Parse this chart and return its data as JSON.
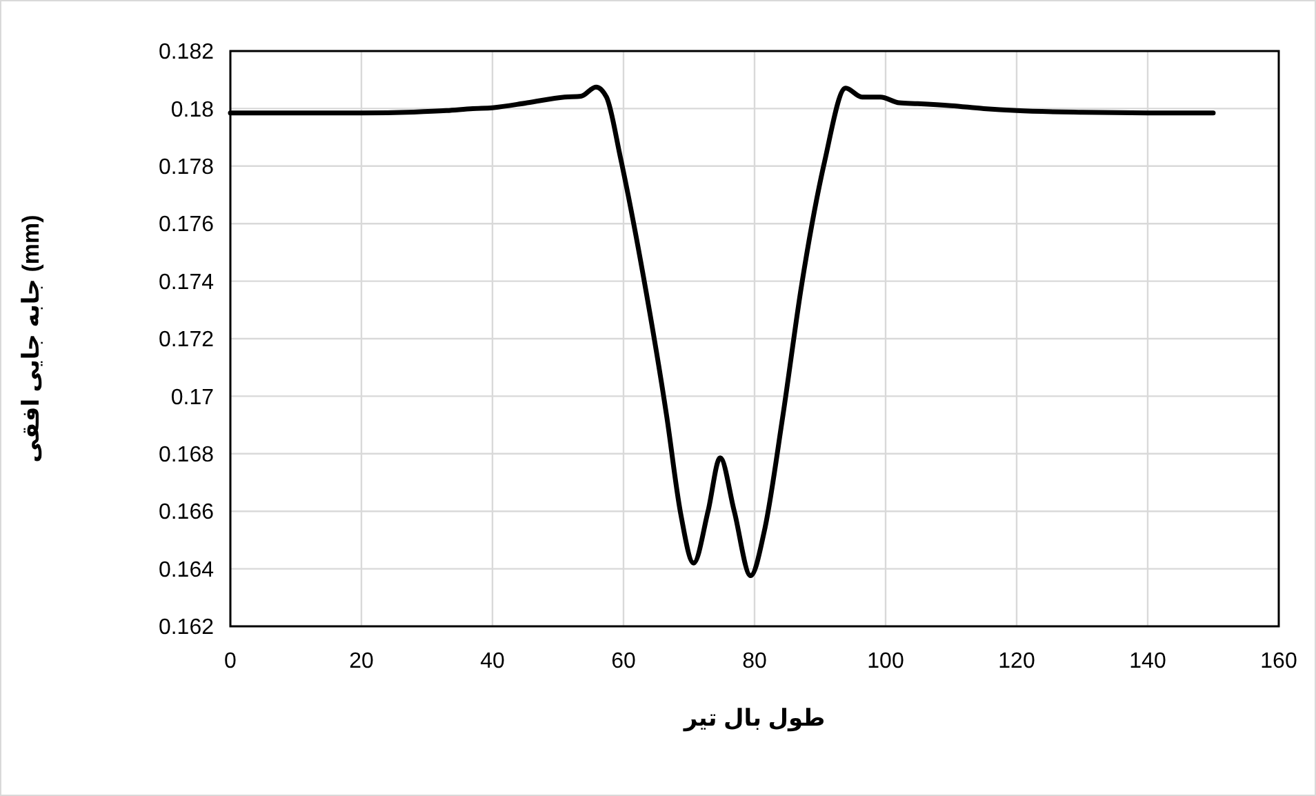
{
  "chart_data": {
    "type": "line",
    "xlabel": "طول بال تیر",
    "ylabel": "جابه جایی افقی (mm)",
    "xlim": [
      0,
      160
    ],
    "xticks": [
      0,
      20,
      40,
      60,
      80,
      100,
      120,
      140,
      160
    ],
    "ylim": [
      0.162,
      0.182
    ],
    "yticks": [
      0.162,
      0.164,
      0.166,
      0.168,
      0.17,
      0.172,
      0.174,
      0.176,
      0.178,
      0.18,
      0.182
    ],
    "grid": true,
    "marker": "none",
    "line_style": "solid",
    "series": [
      {
        "color": "#000000",
        "x": [
          0,
          10,
          20,
          28,
          33,
          37,
          40,
          45.3,
          51,
          53.5,
          55.8,
          57.4,
          59.5,
          63,
          66.6,
          68.7,
          70.7,
          72.9,
          74.75,
          76.9,
          79.4,
          81.5,
          84.3,
          87.2,
          90.7,
          93.9,
          96.4,
          99.2,
          102.1,
          104.9,
          110,
          115,
          120,
          130,
          140,
          150
        ],
        "values": [
          0.17985,
          0.17985,
          0.17985,
          0.17988,
          0.17993,
          0.18,
          0.18003,
          0.1802,
          0.1804,
          0.18043,
          0.18075,
          0.1804,
          0.17833,
          0.17421,
          0.16929,
          0.16595,
          0.1642,
          0.166,
          0.16786,
          0.166,
          0.16376,
          0.16532,
          0.16929,
          0.17389,
          0.17817,
          0.18071,
          0.1804,
          0.1804,
          0.1802,
          0.18017,
          0.1801,
          0.18,
          0.17993,
          0.17987,
          0.17985,
          0.17985
        ]
      }
    ]
  }
}
